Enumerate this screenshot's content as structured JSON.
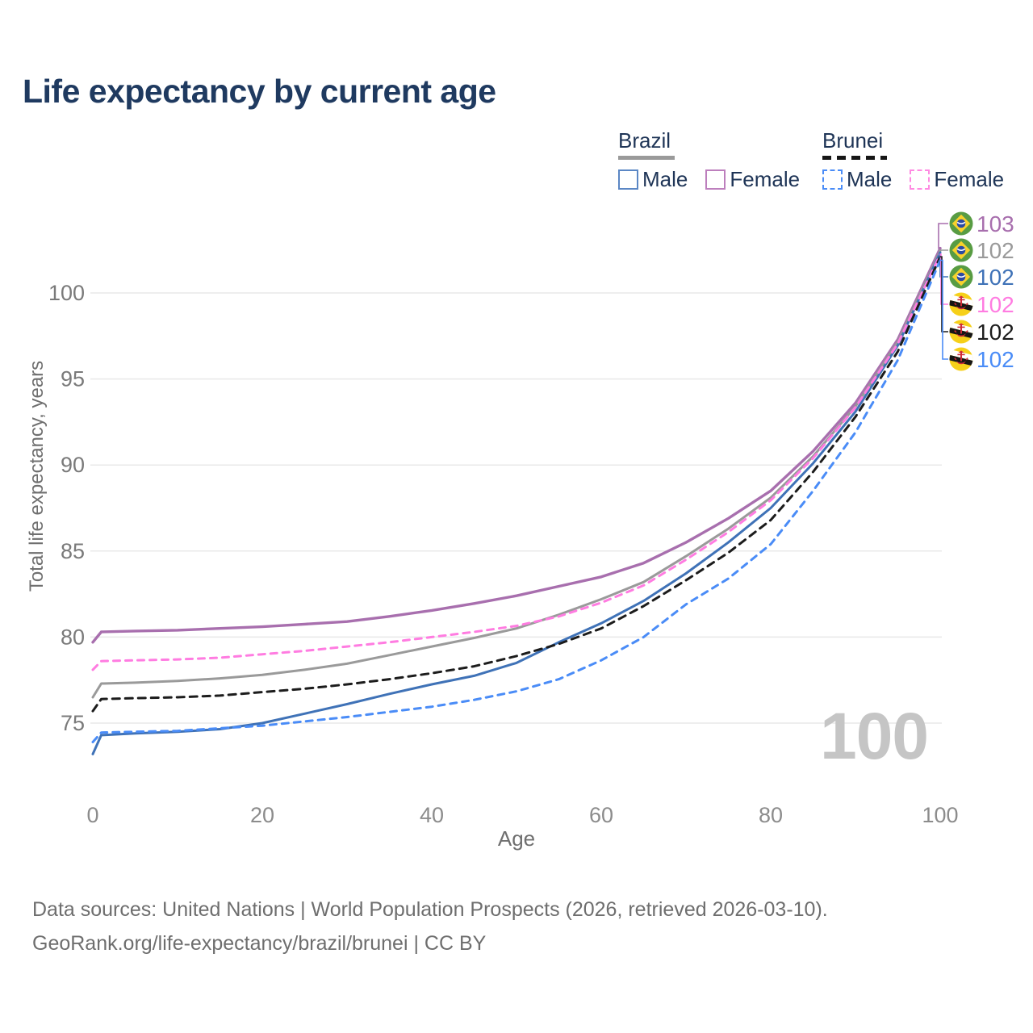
{
  "title": "Life expectancy by current age",
  "watermark_age": "100",
  "legend": {
    "groups": [
      {
        "country": "Brazil",
        "style": "solid",
        "swatch_color": "#9a9a9a",
        "items": [
          {
            "label": "Male",
            "box_color": "#5b87c5",
            "box_style": "solid"
          },
          {
            "label": "Female",
            "box_color": "#bd7fbd",
            "box_style": "solid"
          }
        ]
      },
      {
        "country": "Brunei",
        "style": "dashed",
        "swatch_color": "#161616",
        "items": [
          {
            "label": "Male",
            "box_color": "#4a8cf7",
            "box_style": "dashed"
          },
          {
            "label": "Female",
            "box_color": "#ff8ae2",
            "box_style": "dashed"
          }
        ]
      }
    ]
  },
  "footer": {
    "line1": "Data sources: United Nations | World Population Prospects (2026, retrieved 2026-03-10).",
    "line2": "GeoRank.org/life-expectancy/brazil/brunei | CC BY"
  },
  "chart_data": {
    "type": "line",
    "title": "Life expectancy by current age",
    "xlabel": "Age",
    "ylabel": "Total life expectancy, years",
    "xlim": [
      0,
      100
    ],
    "ylim": [
      72.5,
      103.5
    ],
    "xticks": [
      0,
      20,
      40,
      60,
      80,
      100
    ],
    "yticks": [
      75,
      80,
      85,
      90,
      95,
      100
    ],
    "grid": "horizontal",
    "legend_position": "top-right",
    "x": [
      0,
      1,
      5,
      10,
      15,
      20,
      25,
      30,
      35,
      40,
      45,
      50,
      55,
      60,
      65,
      70,
      75,
      80,
      85,
      90,
      95,
      100
    ],
    "series": [
      {
        "name": "Brazil Female",
        "country": "Brazil",
        "sex": "Female",
        "color": "#a86fae",
        "dash": null,
        "width": 3.4,
        "end_label": "103",
        "flag": "brazil",
        "values": [
          79.7,
          80.3,
          80.35,
          80.4,
          80.5,
          80.6,
          80.75,
          80.9,
          81.2,
          81.55,
          81.95,
          82.4,
          82.95,
          83.5,
          84.3,
          85.5,
          86.9,
          88.5,
          90.8,
          93.6,
          97.3,
          102.6
        ]
      },
      {
        "name": "Brazil Total",
        "country": "Brazil",
        "sex": "Both",
        "color": "#9a9a9a",
        "dash": null,
        "width": 3,
        "end_label": "102",
        "flag": "brazil",
        "values": [
          76.5,
          77.3,
          77.35,
          77.45,
          77.6,
          77.8,
          78.1,
          78.45,
          78.95,
          79.45,
          79.95,
          80.5,
          81.3,
          82.2,
          83.2,
          84.7,
          86.3,
          88.1,
          90.5,
          93.4,
          97.15,
          102.45
        ]
      },
      {
        "name": "Brazil Male",
        "country": "Brazil",
        "sex": "Male",
        "color": "#3f72b7",
        "dash": null,
        "width": 3,
        "end_label": "102",
        "flag": "brazil",
        "values": [
          73.2,
          74.3,
          74.4,
          74.5,
          74.65,
          75.0,
          75.55,
          76.1,
          76.7,
          77.25,
          77.75,
          78.5,
          79.7,
          80.8,
          82.1,
          83.7,
          85.5,
          87.5,
          90.1,
          93.1,
          96.95,
          102.35
        ]
      },
      {
        "name": "Brunei Female",
        "country": "Brunei",
        "sex": "Female",
        "color": "#ff7ce1",
        "dash": [
          8,
          7
        ],
        "width": 3,
        "end_label": "102",
        "flag": "brunei",
        "values": [
          78.1,
          78.6,
          78.65,
          78.7,
          78.8,
          79.0,
          79.2,
          79.45,
          79.7,
          80.0,
          80.3,
          80.65,
          81.2,
          82.0,
          83.0,
          84.5,
          86.1,
          87.95,
          90.4,
          93.35,
          97.05,
          102.25
        ]
      },
      {
        "name": "Brunei Total",
        "country": "Brunei",
        "sex": "Both",
        "color": "#1c1c1c",
        "dash": [
          9,
          7
        ],
        "width": 3,
        "end_label": "102",
        "flag": "brunei",
        "values": [
          75.7,
          76.4,
          76.45,
          76.5,
          76.6,
          76.8,
          77.0,
          77.25,
          77.55,
          77.9,
          78.3,
          78.9,
          79.6,
          80.5,
          81.8,
          83.3,
          84.9,
          86.8,
          89.6,
          92.8,
          96.6,
          102.1
        ]
      },
      {
        "name": "Brunei Male",
        "country": "Brunei",
        "sex": "Male",
        "color": "#4a8cf7",
        "dash": [
          8,
          7
        ],
        "width": 3,
        "end_label": "102",
        "flag": "brunei",
        "values": [
          73.9,
          74.45,
          74.5,
          74.55,
          74.7,
          74.85,
          75.1,
          75.35,
          75.65,
          75.95,
          76.35,
          76.85,
          77.55,
          78.65,
          80.0,
          81.9,
          83.4,
          85.4,
          88.5,
          91.9,
          96.1,
          101.9
        ]
      }
    ]
  }
}
